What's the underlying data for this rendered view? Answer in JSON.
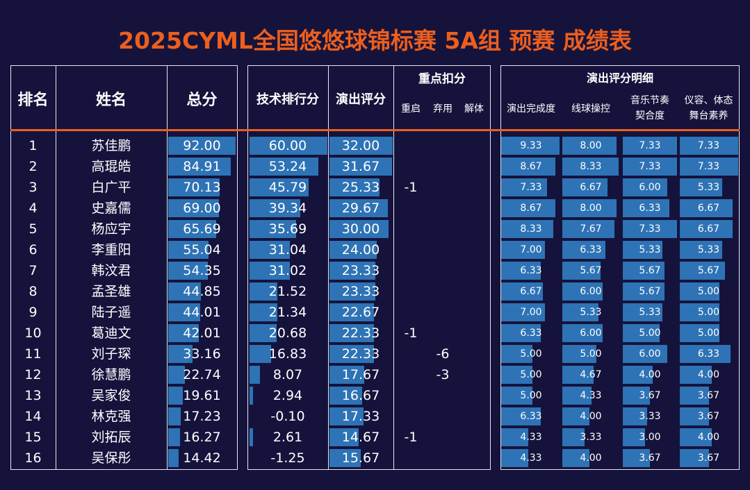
{
  "title": "2025CYML全国悠悠球锦标赛 5A组 预赛 成绩表",
  "headers": {
    "rank": "排名",
    "name": "姓名",
    "total": "总分",
    "tech": "技术排行分",
    "perf": "演出评分",
    "deduction": "重点扣分",
    "deduction_sub": [
      "重启",
      "弃用",
      "解体"
    ],
    "detail": "演出评分明细",
    "detail_sub": [
      {
        "l1": "演出完成度",
        "l2": ""
      },
      {
        "l1": "线球操控",
        "l2": ""
      },
      {
        "l1": "音乐节奏",
        "l2": "契合度"
      },
      {
        "l1": "仪容、体态",
        "l2": "舞台素养"
      }
    ]
  },
  "colors": {
    "bar": "#2e73b5",
    "accent": "#ec5f1e",
    "background": "#15133c"
  },
  "rows": [
    {
      "rank": "1",
      "name": "苏佳鹏",
      "total": "92.00",
      "tech": "60.00",
      "perf": "32.00",
      "ded": [
        "",
        "",
        ""
      ],
      "detail": [
        "9.33",
        "8.00",
        "7.33",
        "7.33"
      ]
    },
    {
      "rank": "2",
      "name": "高琨皓",
      "total": "84.91",
      "tech": "53.24",
      "perf": "31.67",
      "ded": [
        "",
        "",
        ""
      ],
      "detail": [
        "8.67",
        "8.33",
        "7.33",
        "7.33"
      ]
    },
    {
      "rank": "3",
      "name": "白广平",
      "total": "70.13",
      "tech": "45.79",
      "perf": "25.33",
      "ded": [
        "-1",
        "",
        ""
      ],
      "detail": [
        "7.33",
        "6.67",
        "6.00",
        "5.33"
      ]
    },
    {
      "rank": "4",
      "name": "史嘉儒",
      "total": "69.00",
      "tech": "39.34",
      "perf": "29.67",
      "ded": [
        "",
        "",
        ""
      ],
      "detail": [
        "8.67",
        "8.00",
        "6.33",
        "6.67"
      ]
    },
    {
      "rank": "5",
      "name": "杨应宇",
      "total": "65.69",
      "tech": "35.69",
      "perf": "30.00",
      "ded": [
        "",
        "",
        ""
      ],
      "detail": [
        "8.33",
        "7.67",
        "7.33",
        "6.67"
      ]
    },
    {
      "rank": "6",
      "name": "李重阳",
      "total": "55.04",
      "tech": "31.04",
      "perf": "24.00",
      "ded": [
        "",
        "",
        ""
      ],
      "detail": [
        "7.00",
        "6.33",
        "5.33",
        "5.33"
      ]
    },
    {
      "rank": "7",
      "name": "韩汶君",
      "total": "54.35",
      "tech": "31.02",
      "perf": "23.33",
      "ded": [
        "",
        "",
        ""
      ],
      "detail": [
        "6.33",
        "5.67",
        "5.67",
        "5.67"
      ]
    },
    {
      "rank": "8",
      "name": "孟圣雄",
      "total": "44.85",
      "tech": "21.52",
      "perf": "23.33",
      "ded": [
        "",
        "",
        ""
      ],
      "detail": [
        "6.67",
        "6.00",
        "5.67",
        "5.00"
      ]
    },
    {
      "rank": "9",
      "name": "陆子遥",
      "total": "44.01",
      "tech": "21.34",
      "perf": "22.67",
      "ded": [
        "",
        "",
        ""
      ],
      "detail": [
        "7.00",
        "5.33",
        "5.33",
        "5.00"
      ]
    },
    {
      "rank": "10",
      "name": "葛迪文",
      "total": "42.01",
      "tech": "20.68",
      "perf": "22.33",
      "ded": [
        "-1",
        "",
        ""
      ],
      "detail": [
        "6.33",
        "6.00",
        "5.00",
        "5.00"
      ]
    },
    {
      "rank": "11",
      "name": "刘子琛",
      "total": "33.16",
      "tech": "16.83",
      "perf": "22.33",
      "ded": [
        "",
        "-6",
        ""
      ],
      "detail": [
        "5.00",
        "5.00",
        "6.00",
        "6.33"
      ]
    },
    {
      "rank": "12",
      "name": "徐慧鹏",
      "total": "22.74",
      "tech": "8.07",
      "perf": "17.67",
      "ded": [
        "",
        "-3",
        ""
      ],
      "detail": [
        "5.00",
        "4.67",
        "4.00",
        "4.00"
      ]
    },
    {
      "rank": "13",
      "name": "吴家俊",
      "total": "19.61",
      "tech": "2.94",
      "perf": "16.67",
      "ded": [
        "",
        "",
        ""
      ],
      "detail": [
        "5.00",
        "4.33",
        "3.67",
        "3.67"
      ]
    },
    {
      "rank": "14",
      "name": "林克强",
      "total": "17.23",
      "tech": "-0.10",
      "perf": "17.33",
      "ded": [
        "",
        "",
        ""
      ],
      "detail": [
        "6.33",
        "4.00",
        "3.33",
        "3.67"
      ]
    },
    {
      "rank": "15",
      "name": "刘拓辰",
      "total": "16.27",
      "tech": "2.61",
      "perf": "14.67",
      "ded": [
        "-1",
        "",
        ""
      ],
      "detail": [
        "4.33",
        "3.33",
        "3.00",
        "4.00"
      ]
    },
    {
      "rank": "16",
      "name": "吴保彤",
      "total": "14.42",
      "tech": "-1.25",
      "perf": "15.67",
      "ded": [
        "",
        "",
        ""
      ],
      "detail": [
        "4.33",
        "4.00",
        "3.67",
        "3.67"
      ]
    }
  ]
}
